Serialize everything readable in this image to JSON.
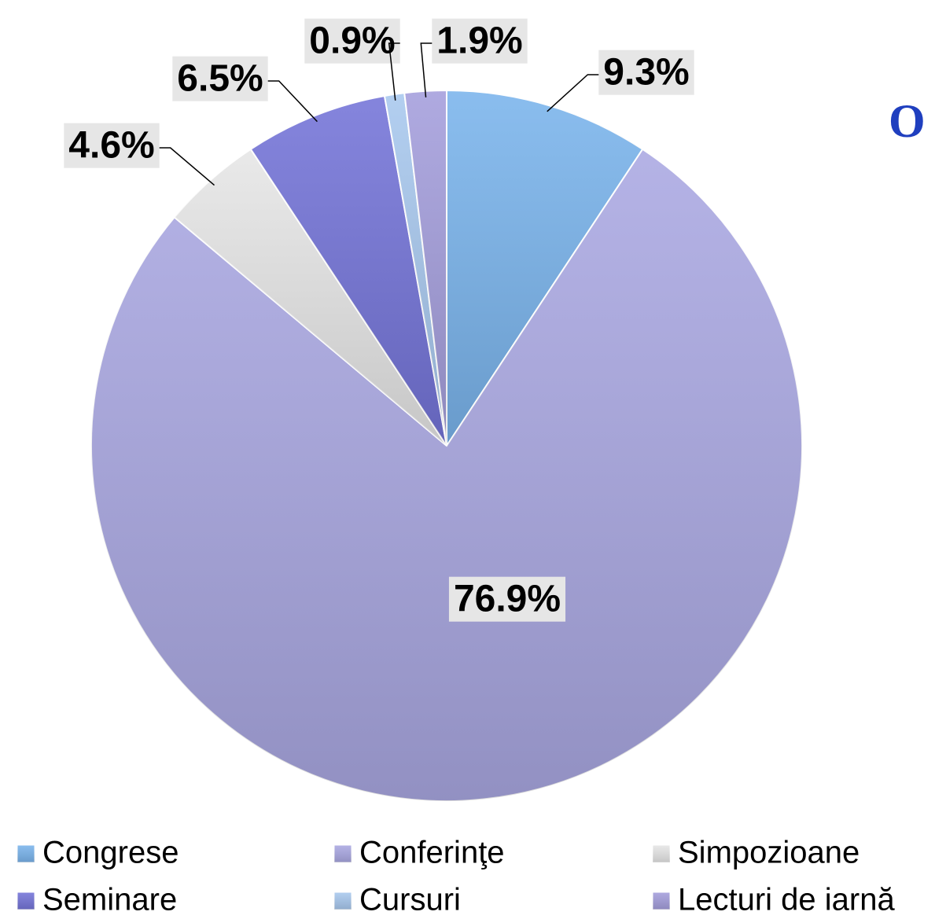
{
  "chart_data": {
    "type": "pie",
    "title": "O",
    "categories": [
      "Congrese",
      "Conferinţe",
      "Simpozioane",
      "Seminare",
      "Cursuri",
      "Lecturi de iarnă"
    ],
    "values": [
      9.3,
      76.9,
      4.6,
      6.5,
      0.9,
      1.9
    ],
    "value_labels": [
      "9.3%",
      "76.9%",
      "4.6%",
      "6.5%",
      "0.9%",
      "1.9%"
    ],
    "colors": [
      "#7ab4ec",
      "#aaa8e2",
      "#e6e6e6",
      "#7474d8",
      "#a8c8ee",
      "#a49edc"
    ],
    "legend": "bottom"
  }
}
